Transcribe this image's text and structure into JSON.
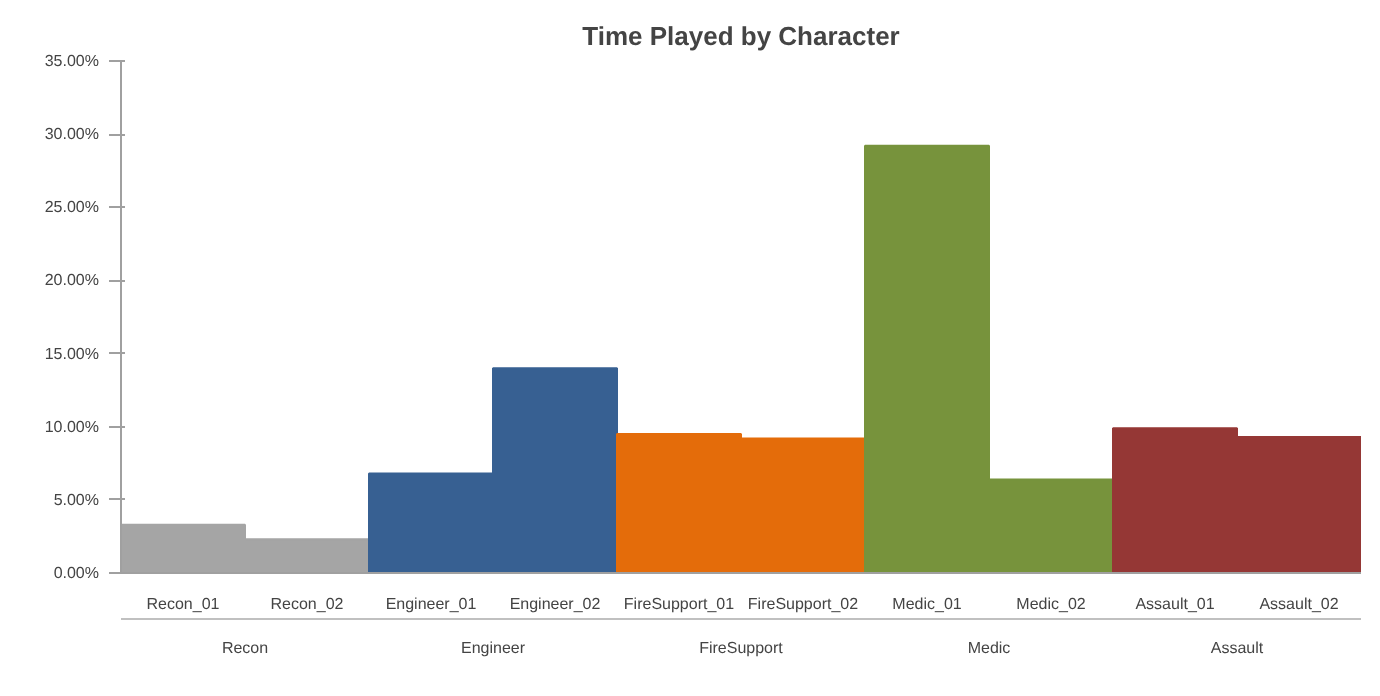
{
  "chart_data": {
    "type": "bar",
    "title": "Time Played by Character",
    "categories": [
      "Recon_01",
      "Recon_02",
      "Engineer_01",
      "Engineer_02",
      "FireSupport_01",
      "FireSupport_02",
      "Medic_01",
      "Medic_02",
      "Assault_01",
      "Assault_02"
    ],
    "values": [
      3.3,
      2.3,
      6.8,
      14.0,
      9.5,
      9.2,
      29.2,
      6.4,
      9.9,
      9.3
    ],
    "colors": [
      "#a5a5a5",
      "#a5a5a5",
      "#376092",
      "#376092",
      "#e46c0a",
      "#e46c0a",
      "#77933c",
      "#77933c",
      "#953735",
      "#953735"
    ],
    "annotations": [
      "Recon",
      "Engineer",
      "FireSupport",
      "Medic",
      "Assault"
    ],
    "ylim": [
      0,
      35
    ],
    "yticks": [
      {
        "value": 0,
        "label": "0.00%"
      },
      {
        "value": 5,
        "label": "5.00%"
      },
      {
        "value": 10,
        "label": "10.00%"
      },
      {
        "value": 15,
        "label": "15.00%"
      },
      {
        "value": 20,
        "label": "20.00%"
      },
      {
        "value": 25,
        "label": "25.00%"
      },
      {
        "value": 30,
        "label": "30.00%"
      },
      {
        "value": 35,
        "label": "35.00%"
      }
    ],
    "grid": false
  }
}
